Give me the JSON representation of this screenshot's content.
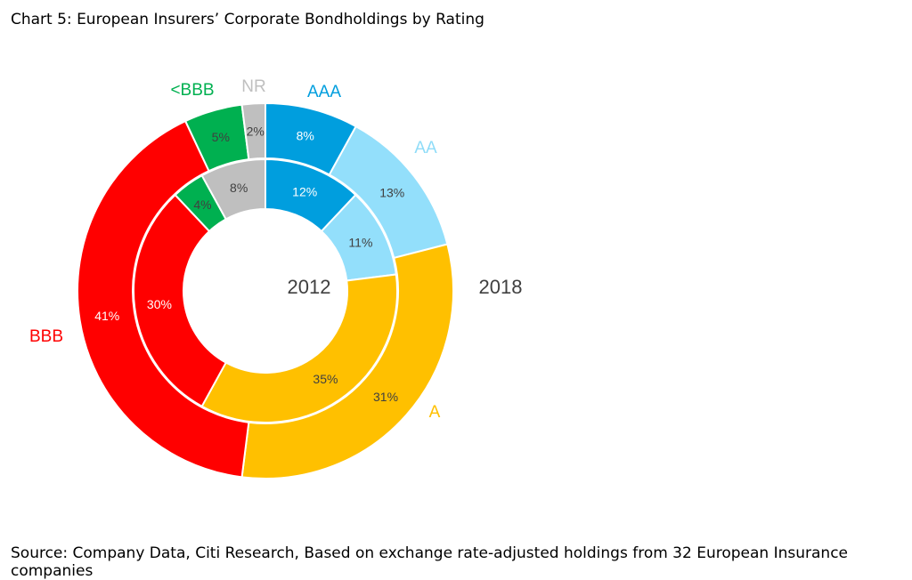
{
  "title": "Chart 5: European Insurers’ Corporate Bondholdings by Rating",
  "source": "Source: Company Data, Citi Research, Based on exchange rate-adjusted holdings from 32 European Insurance companies",
  "chart_data": {
    "type": "donut",
    "categories": [
      "AAA",
      "AA",
      "A",
      "BBB",
      "<BBB",
      "NR"
    ],
    "colors": [
      "#009ede",
      "#93dffb",
      "#ffc000",
      "#ff0000",
      "#00b050",
      "#bfbfbf"
    ],
    "inner_ring_label": "2012",
    "outer_ring_label": "2018",
    "series": [
      {
        "name": "2012",
        "values": [
          12,
          11,
          35,
          30,
          4,
          8
        ],
        "labels": [
          "12%",
          "11%",
          "35%",
          "30%",
          "4%",
          "8%"
        ]
      },
      {
        "name": "2018",
        "values": [
          8,
          13,
          31,
          41,
          5,
          2
        ],
        "labels": [
          "8%",
          "13%",
          "31%",
          "41%",
          "5%",
          "2%"
        ]
      }
    ]
  }
}
